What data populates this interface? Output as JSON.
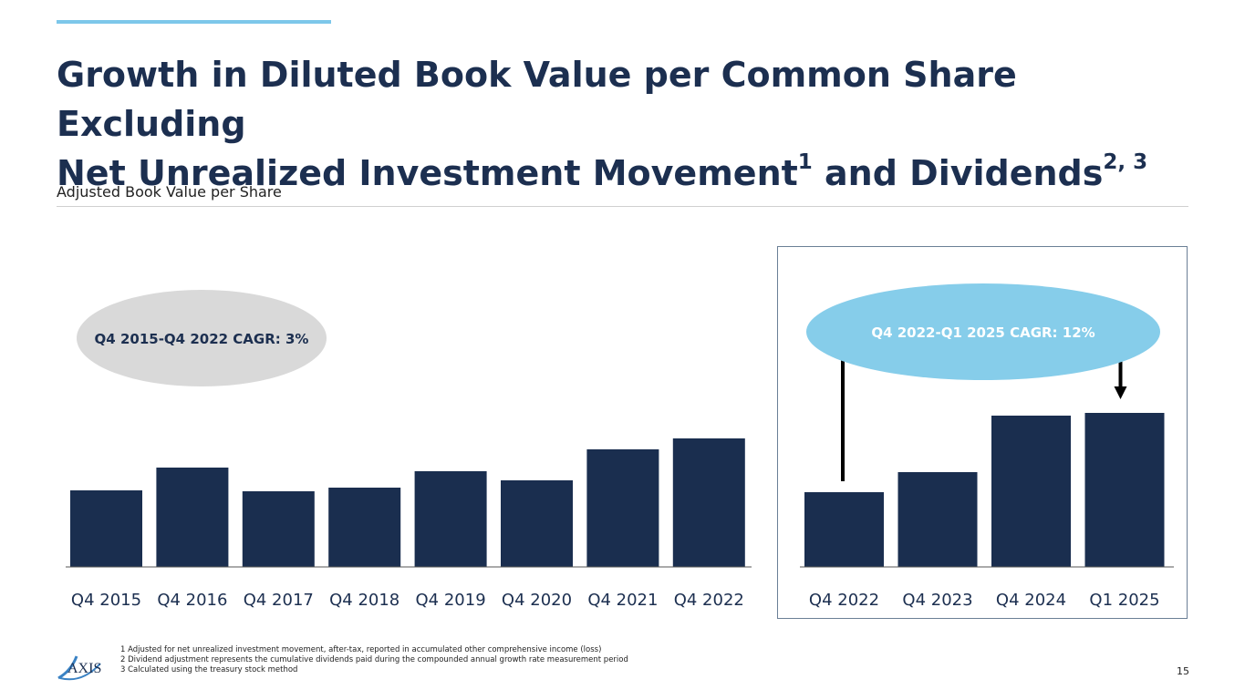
{
  "header": {
    "title_line1": "Growth in Diluted Book Value per Common Share Excluding",
    "title_line2": "Net Unrealized Investment Movement",
    "title_sup1": "1",
    "title_line2b": " and Dividends",
    "title_sup2": "2, 3",
    "subtitle": "Adjusted Book Value per Share"
  },
  "colors": {
    "bar": "#1a2e4f",
    "accent": "#7dc7ea",
    "cagr_left_bg": "#d9d9d9",
    "cagr_right_bg": "#86cdea"
  },
  "chart_data": [
    {
      "type": "bar",
      "title": "",
      "categories": [
        "Q4 2015",
        "Q4 2016",
        "Q4 2017",
        "Q4 2018",
        "Q4 2019",
        "Q4 2020",
        "Q4 2021",
        "Q4 2022"
      ],
      "values": [
        84,
        109,
        83,
        87,
        105,
        95,
        129,
        141
      ],
      "ylim": [
        0,
        300
      ],
      "annotation": "Q4 2015-Q4 2022 CAGR: 3%",
      "xlabel": "",
      "ylabel": ""
    },
    {
      "type": "bar",
      "title": "",
      "categories": [
        "Q4 2022",
        "Q4 2023",
        "Q4 2024",
        "Q1 2025"
      ],
      "values": [
        82,
        104,
        166,
        169
      ],
      "ylim": [
        0,
        300
      ],
      "annotation": "Q4 2022-Q1 2025 CAGR: 12%",
      "xlabel": "",
      "ylabel": ""
    }
  ],
  "footnotes": [
    "1  Adjusted for net unrealized investment movement, after-tax, reported in accumulated other comprehensive income (loss)",
    "2  Dividend adjustment represents the cumulative dividends paid during the compounded annual growth rate measurement period",
    "3  Calculated using the treasury stock method"
  ],
  "page_number": "15",
  "logo_text": "AXIS"
}
